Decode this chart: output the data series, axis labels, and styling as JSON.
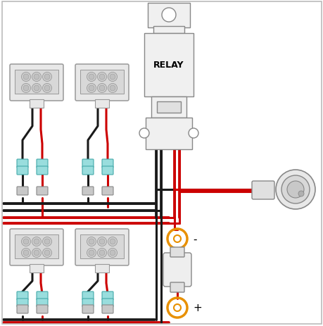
{
  "bg_color": "#ffffff",
  "border_color": "#bbbbbb",
  "wire_black": "#1a1a1a",
  "wire_red": "#cc0000",
  "wire_orange": "#e89000",
  "relay_fill": "#f0f0f0",
  "relay_outline": "#888888",
  "light_fill": "#e8e8e8",
  "light_lens": "#d0d0d0",
  "light_outline": "#999999",
  "conn_teal": "#99dddd",
  "conn_teal_outline": "#44aaaa",
  "conn_gray": "#c8c8c8",
  "conn_gray_outline": "#888888",
  "sw_fill": "#e8e8e8",
  "sw_outline": "#888888",
  "fuse_fill": "#eeeeee",
  "fuse_outline": "#888888",
  "lw_wire": 2.2,
  "lw_comp": 1.0,
  "relay_label": "RELAY",
  "minus_label": "-",
  "plus_label": "+"
}
